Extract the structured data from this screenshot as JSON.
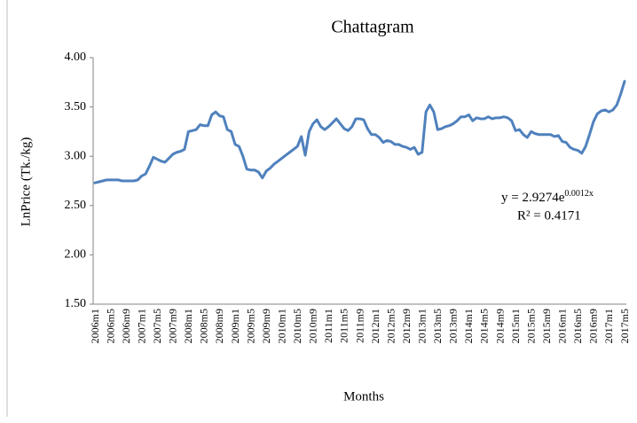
{
  "chart_data": {
    "type": "line",
    "title": "Chattagram",
    "y_label": "LnPrice (Tk./kg)",
    "x_label": "Months",
    "equation": "y = 2.9274e",
    "equation_exponent": "0.0012x",
    "r_squared": "R² = 0.4171",
    "color": "#4f81bd",
    "ylim": [
      1.5,
      4
    ],
    "yticks": [
      {
        "value": 1.5,
        "label": "1.50"
      },
      {
        "value": 2,
        "label": "2.00"
      },
      {
        "value": 2.5,
        "label": "2.50"
      },
      {
        "value": 3,
        "label": "3.00"
      },
      {
        "value": 3.5,
        "label": "3.50"
      },
      {
        "value": 4,
        "label": "4.00"
      }
    ],
    "categories": [
      "2006m1",
      null,
      null,
      null,
      "2006m5",
      null,
      null,
      null,
      "2006m9",
      null,
      null,
      null,
      "2007m1",
      null,
      null,
      null,
      "2007m5",
      null,
      null,
      null,
      "2007m9",
      null,
      null,
      null,
      "2008m1",
      null,
      null,
      null,
      "2008m5",
      null,
      null,
      null,
      "2008m9",
      null,
      null,
      null,
      "2009m1",
      null,
      null,
      null,
      "2009m5",
      null,
      null,
      null,
      "2009m9",
      null,
      null,
      null,
      "2010m1",
      null,
      null,
      null,
      "2010m5",
      null,
      null,
      null,
      "2010m9",
      null,
      null,
      null,
      "2011m1",
      null,
      null,
      null,
      "2011m5",
      null,
      null,
      null,
      "2011m9",
      null,
      null,
      null,
      "2012m1",
      null,
      null,
      null,
      "2012m5",
      null,
      null,
      null,
      "2012m9",
      null,
      null,
      null,
      "2013m1",
      null,
      null,
      null,
      "2013m5",
      null,
      null,
      null,
      "2013m9",
      null,
      null,
      null,
      "2014m1",
      null,
      null,
      null,
      "2014m5",
      null,
      null,
      null,
      "2014m9",
      null,
      null,
      null,
      "2015m1",
      null,
      null,
      null,
      "2015m5",
      null,
      null,
      null,
      "2015m9",
      null,
      null,
      null,
      "2016m1",
      null,
      null,
      null,
      "2016m5",
      null,
      null,
      null,
      "2016m9",
      null,
      null,
      null,
      "2017m1",
      null,
      null,
      null,
      "2017m5"
    ],
    "values": [
      2.73,
      2.74,
      2.75,
      2.76,
      2.76,
      2.76,
      2.76,
      2.75,
      2.75,
      2.75,
      2.75,
      2.76,
      2.8,
      2.82,
      2.9,
      2.99,
      2.97,
      2.95,
      2.94,
      2.98,
      3.02,
      3.04,
      3.05,
      3.07,
      3.25,
      3.26,
      3.27,
      3.32,
      3.31,
      3.31,
      3.42,
      3.45,
      3.41,
      3.4,
      3.27,
      3.25,
      3.12,
      3.1,
      3.0,
      2.87,
      2.86,
      2.86,
      2.84,
      2.78,
      2.85,
      2.88,
      2.92,
      2.95,
      2.98,
      3.01,
      3.04,
      3.07,
      3.1,
      3.2,
      3.01,
      3.25,
      3.33,
      3.37,
      3.3,
      3.27,
      3.3,
      3.34,
      3.38,
      3.33,
      3.28,
      3.26,
      3.3,
      3.38,
      3.38,
      3.37,
      3.28,
      3.22,
      3.22,
      3.19,
      3.14,
      3.16,
      3.15,
      3.12,
      3.12,
      3.1,
      3.09,
      3.07,
      3.09,
      3.02,
      3.04,
      3.45,
      3.52,
      3.45,
      3.27,
      3.28,
      3.3,
      3.31,
      3.33,
      3.36,
      3.4,
      3.4,
      3.42,
      3.36,
      3.39,
      3.38,
      3.38,
      3.4,
      3.38,
      3.39,
      3.39,
      3.4,
      3.39,
      3.36,
      3.26,
      3.27,
      3.22,
      3.19,
      3.25,
      3.23,
      3.22,
      3.22,
      3.22,
      3.22,
      3.2,
      3.21,
      3.15,
      3.14,
      3.09,
      3.07,
      3.06,
      3.03,
      3.1,
      3.22,
      3.35,
      3.43,
      3.46,
      3.47,
      3.45,
      3.47,
      3.52,
      3.63,
      3.76
    ]
  }
}
